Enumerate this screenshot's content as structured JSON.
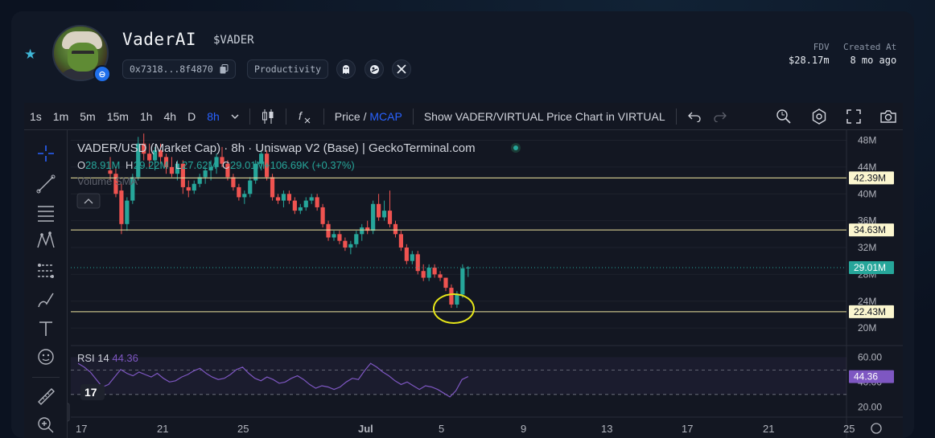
{
  "header": {
    "token_name": "VaderAI",
    "token_symbol": "$VADER",
    "contract": "0x7318...8f4870",
    "category": "Productivity",
    "fdv_label": "FDV",
    "fdv_value": "$28.17m",
    "created_label": "Created At",
    "created_value": "8 mo ago",
    "social_icons": [
      "ghost-icon",
      "gecko-icon",
      "x-icon"
    ]
  },
  "toolbar": {
    "intervals": [
      "1s",
      "1m",
      "5m",
      "15m",
      "1h",
      "4h",
      "D",
      "8h"
    ],
    "active_interval": "8h",
    "price_label": "Price",
    "mcap_label": "MCAP",
    "show_virtual_label": "Show VADER/VIRTUAL Price Chart in VIRTUAL",
    "icons": [
      "chevron-down-icon",
      "candles-icon",
      "fx-icon",
      "undo-icon",
      "redo-icon",
      "search-settings-icon",
      "gear-icon",
      "fullscreen-icon",
      "camera-icon"
    ]
  },
  "legend": {
    "title": "VADER/USD (Market Cap) · 8h · Uniswap V2 (Base) | GeckoTerminal.com",
    "o_label": "O",
    "o_value": "28.91M",
    "h_label": "H",
    "h_value": "29.22M",
    "l_label": "L",
    "l_value": "27.62M",
    "c_label": "C",
    "c_value": "29.01M",
    "change": "+106.69K (+0.37%)",
    "volume_sma": "Volume SMA"
  },
  "rsi": {
    "label": "RSI",
    "period": "14",
    "value": "44.36"
  },
  "colors": {
    "up": "#26a69a",
    "down": "#ef5350",
    "level_line": "#f0e6a0",
    "rsi_line": "#7e57c2",
    "accent": "#2962ff"
  },
  "chart_data": {
    "type": "candlestick",
    "y_axis_ticks": [
      "48M",
      "44M",
      "40M",
      "36M",
      "32M",
      "28M",
      "24M",
      "20M"
    ],
    "x_axis_ticks": [
      "17",
      "21",
      "25",
      "Jul",
      "5",
      "9",
      "13",
      "17",
      "21",
      "25"
    ],
    "price_levels": [
      {
        "label": "42.39M",
        "value": 42.39
      },
      {
        "label": "34.63M",
        "value": 34.63
      },
      {
        "label": "22.43M",
        "value": 22.43
      }
    ],
    "last_price": {
      "label": "29.01M",
      "value": 29.01
    },
    "rsi_ticks": [
      "60.00",
      "40.00",
      "20.00"
    ],
    "rsi_last": "44.36",
    "candles": [
      {
        "o": 43.5,
        "h": 45.5,
        "l": 42.0,
        "c": 43.0
      },
      {
        "o": 43.0,
        "h": 44.0,
        "l": 39.5,
        "c": 40.0
      },
      {
        "o": 40.5,
        "h": 41.5,
        "l": 34.0,
        "c": 35.5
      },
      {
        "o": 35.5,
        "h": 39.5,
        "l": 34.5,
        "c": 39.0
      },
      {
        "o": 39.0,
        "h": 43.0,
        "l": 38.5,
        "c": 42.5
      },
      {
        "o": 42.5,
        "h": 48.5,
        "l": 42.0,
        "c": 47.5
      },
      {
        "o": 47.5,
        "h": 49.0,
        "l": 45.0,
        "c": 46.0
      },
      {
        "o": 46.0,
        "h": 47.5,
        "l": 44.0,
        "c": 45.0
      },
      {
        "o": 45.0,
        "h": 47.0,
        "l": 43.5,
        "c": 46.5
      },
      {
        "o": 46.5,
        "h": 47.5,
        "l": 44.5,
        "c": 45.5
      },
      {
        "o": 45.5,
        "h": 46.0,
        "l": 43.0,
        "c": 44.0
      },
      {
        "o": 44.0,
        "h": 45.5,
        "l": 42.5,
        "c": 43.0
      },
      {
        "o": 43.0,
        "h": 45.0,
        "l": 42.0,
        "c": 44.5
      },
      {
        "o": 44.5,
        "h": 45.0,
        "l": 40.0,
        "c": 41.0
      },
      {
        "o": 41.0,
        "h": 42.0,
        "l": 39.5,
        "c": 40.5
      },
      {
        "o": 40.5,
        "h": 42.0,
        "l": 40.0,
        "c": 41.5
      },
      {
        "o": 41.5,
        "h": 43.0,
        "l": 41.0,
        "c": 42.5
      },
      {
        "o": 42.5,
        "h": 44.0,
        "l": 41.5,
        "c": 43.5
      },
      {
        "o": 43.5,
        "h": 45.0,
        "l": 42.0,
        "c": 44.0
      },
      {
        "o": 44.0,
        "h": 46.0,
        "l": 43.0,
        "c": 45.5
      },
      {
        "o": 45.5,
        "h": 47.0,
        "l": 44.0,
        "c": 44.5
      },
      {
        "o": 44.5,
        "h": 45.0,
        "l": 42.0,
        "c": 42.5
      },
      {
        "o": 42.5,
        "h": 43.0,
        "l": 40.5,
        "c": 41.0
      },
      {
        "o": 41.0,
        "h": 41.5,
        "l": 39.0,
        "c": 39.5
      },
      {
        "o": 39.5,
        "h": 40.5,
        "l": 38.5,
        "c": 40.0
      },
      {
        "o": 40.0,
        "h": 42.5,
        "l": 39.5,
        "c": 42.0
      },
      {
        "o": 42.0,
        "h": 45.0,
        "l": 41.5,
        "c": 44.5
      },
      {
        "o": 44.5,
        "h": 46.5,
        "l": 43.5,
        "c": 46.0
      },
      {
        "o": 46.0,
        "h": 46.5,
        "l": 42.0,
        "c": 42.5
      },
      {
        "o": 42.5,
        "h": 43.0,
        "l": 39.0,
        "c": 39.5
      },
      {
        "o": 39.5,
        "h": 40.0,
        "l": 38.5,
        "c": 39.0
      },
      {
        "o": 39.0,
        "h": 40.5,
        "l": 38.0,
        "c": 40.0
      },
      {
        "o": 40.0,
        "h": 40.5,
        "l": 38.5,
        "c": 39.0
      },
      {
        "o": 39.0,
        "h": 39.5,
        "l": 37.0,
        "c": 37.5
      },
      {
        "o": 37.5,
        "h": 38.5,
        "l": 37.0,
        "c": 38.0
      },
      {
        "o": 38.0,
        "h": 39.5,
        "l": 37.5,
        "c": 39.0
      },
      {
        "o": 39.0,
        "h": 40.0,
        "l": 38.5,
        "c": 39.5
      },
      {
        "o": 39.5,
        "h": 40.0,
        "l": 37.5,
        "c": 38.0
      },
      {
        "o": 38.0,
        "h": 38.5,
        "l": 35.0,
        "c": 35.5
      },
      {
        "o": 35.5,
        "h": 36.0,
        "l": 33.0,
        "c": 33.5
      },
      {
        "o": 33.5,
        "h": 34.5,
        "l": 33.0,
        "c": 34.0
      },
      {
        "o": 34.0,
        "h": 34.5,
        "l": 32.5,
        "c": 33.0
      },
      {
        "o": 33.0,
        "h": 33.5,
        "l": 31.5,
        "c": 32.0
      },
      {
        "o": 32.0,
        "h": 33.0,
        "l": 31.0,
        "c": 32.5
      },
      {
        "o": 32.5,
        "h": 34.5,
        "l": 32.0,
        "c": 34.0
      },
      {
        "o": 34.0,
        "h": 35.5,
        "l": 33.0,
        "c": 35.0
      },
      {
        "o": 35.0,
        "h": 36.0,
        "l": 34.0,
        "c": 34.5
      },
      {
        "o": 34.5,
        "h": 39.0,
        "l": 34.0,
        "c": 38.5
      },
      {
        "o": 38.5,
        "h": 40.0,
        "l": 36.0,
        "c": 36.5
      },
      {
        "o": 36.5,
        "h": 39.0,
        "l": 36.0,
        "c": 37.5
      },
      {
        "o": 37.5,
        "h": 40.5,
        "l": 35.0,
        "c": 35.5
      },
      {
        "o": 35.5,
        "h": 36.0,
        "l": 33.5,
        "c": 34.0
      },
      {
        "o": 34.0,
        "h": 34.5,
        "l": 31.5,
        "c": 32.0
      },
      {
        "o": 32.0,
        "h": 32.5,
        "l": 29.5,
        "c": 30.0
      },
      {
        "o": 30.0,
        "h": 31.5,
        "l": 29.5,
        "c": 31.0
      },
      {
        "o": 31.0,
        "h": 31.5,
        "l": 28.0,
        "c": 28.5
      },
      {
        "o": 28.5,
        "h": 29.5,
        "l": 27.0,
        "c": 27.5
      },
      {
        "o": 27.5,
        "h": 29.5,
        "l": 27.0,
        "c": 29.0
      },
      {
        "o": 29.0,
        "h": 29.5,
        "l": 27.5,
        "c": 28.0
      },
      {
        "o": 28.0,
        "h": 28.5,
        "l": 27.0,
        "c": 27.5
      },
      {
        "o": 27.5,
        "h": 27.5,
        "l": 25.5,
        "c": 26.0
      },
      {
        "o": 26.0,
        "h": 26.5,
        "l": 23.0,
        "c": 23.5
      },
      {
        "o": 23.5,
        "h": 25.5,
        "l": 23.0,
        "c": 25.0
      },
      {
        "o": 25.0,
        "h": 29.5,
        "l": 24.5,
        "c": 28.9
      },
      {
        "o": 28.91,
        "h": 29.22,
        "l": 27.62,
        "c": 29.01
      }
    ],
    "rsi": [
      55,
      52,
      48,
      42,
      36,
      38,
      44,
      50,
      47,
      45,
      48,
      46,
      44,
      47,
      43,
      40,
      41,
      44,
      46,
      49,
      51,
      47,
      44,
      42,
      43,
      46,
      50,
      52,
      47,
      43,
      41,
      44,
      42,
      39,
      40,
      43,
      45,
      42,
      38,
      35,
      37,
      36,
      34,
      36,
      40,
      43,
      42,
      49,
      55,
      52,
      48,
      45,
      41,
      38,
      40,
      37,
      34,
      37,
      36,
      34,
      31,
      28,
      33,
      42,
      44.36
    ]
  }
}
